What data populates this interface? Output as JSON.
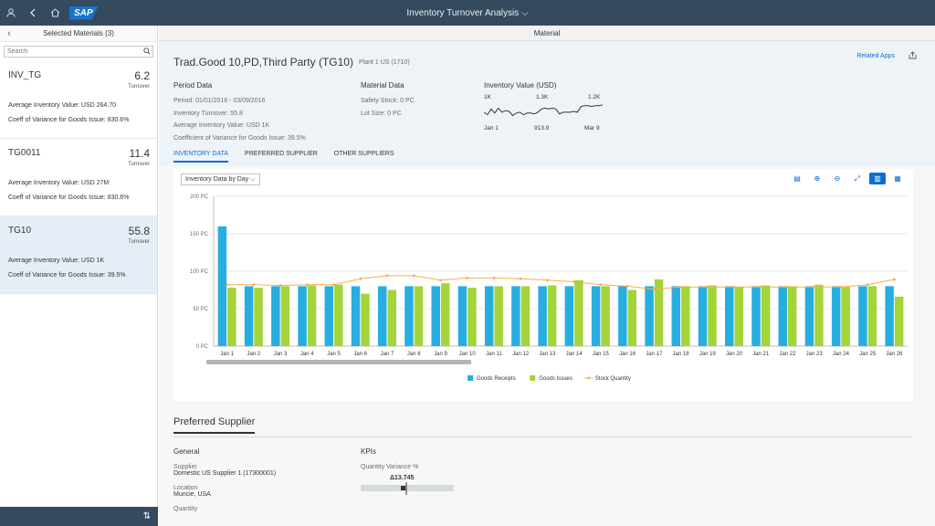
{
  "shell": {
    "title": "Inventory Turnover Analysis",
    "logo": "SAP",
    "icons": [
      "user-icon",
      "back-icon",
      "home-icon",
      "search-icon",
      "help-icon",
      "notifications-icon"
    ]
  },
  "left": {
    "title": "Selected Materials (3)",
    "search_placeholder": "Search",
    "items": [
      {
        "name": "INV_TG",
        "value": "6.2",
        "unit": "Turnover",
        "attr1": "Average Inventory Value: USD 264.70",
        "attr2": "Coeff of Variance for Goods Issue: 830.6%"
      },
      {
        "name": "TG0011",
        "value": "11.4",
        "unit": "Turnover",
        "attr1": "Average Inventory Value: USD 27M",
        "attr2": "Coeff of Variance for Goods Issue: 830.6%"
      },
      {
        "name": "TG10",
        "value": "55.8",
        "unit": "Turnover",
        "attr1": "Average Inventory Value: USD 1K",
        "attr2": "Coeff of Variance for Goods Issue: 39.5%"
      }
    ],
    "footer_icon": "sort-icon"
  },
  "page": {
    "subheader": "Material",
    "title": "Trad.Good 10,PD,Third Party (TG10)",
    "subtitle": "Plant 1 US (1710)",
    "related_apps": "Related Apps",
    "period": {
      "heading": "Period Data",
      "lines": [
        "Period: 01/01/2016 - 03/09/2016",
        "Inventory Turnover: 55.8",
        "Average Inventory Value: USD 1K",
        "Coefficient of Variance for Goods Issue: 39.5%"
      ]
    },
    "material": {
      "heading": "Material Data",
      "lines": [
        "Safety Stock: 0 PC",
        "Lot Size: 0 PC"
      ]
    },
    "inventory_value": {
      "heading": "Inventory Value (USD)",
      "top_labels": [
        "1K",
        "1.3K",
        "1.2K"
      ],
      "bottom_labels": [
        "Jan 1",
        "913.9",
        "Mar 9"
      ],
      "points": [
        0.55,
        0.7,
        0.35,
        0.6,
        0.3,
        0.55,
        0.45,
        0.5,
        0.75,
        0.6,
        0.55,
        0.7,
        0.6,
        0.6,
        0.65,
        0.55,
        0.35,
        0.3,
        0.35,
        0.3,
        0.35,
        0.65,
        0.55,
        0.55,
        0.55,
        0.5,
        0.55,
        0.2,
        0.15,
        0.15,
        0.2,
        0.15,
        0.15,
        0.1
      ]
    },
    "tabs": [
      "INVENTORY DATA",
      "PREFERRED SUPPLIER",
      "OTHER SUPPLIERS"
    ],
    "chart_select": "Inventory Data by Day",
    "preferred": {
      "title": "Preferred Supplier",
      "general_heading": "General",
      "supplier_label": "Supplier",
      "supplier_value": "Domestic US Supplier 1 (17300001)",
      "location_label": "Location",
      "location_value": "Muncie, USA",
      "quantity_label": "Quantity",
      "kpis_heading": "KPIs",
      "qv_label": "Quantity Variance %",
      "qv_value": "Δ13.745"
    }
  },
  "chart_data": {
    "type": "bar",
    "categories": [
      "Jan 1",
      "Jan 2",
      "Jan 3",
      "Jan 4",
      "Jan 5",
      "Jan 6",
      "Jan 7",
      "Jan 8",
      "Jan 9",
      "Jan 10",
      "Jan 11",
      "Jan 12",
      "Jan 13",
      "Jan 14",
      "Jan 15",
      "Jan 16",
      "Jan 17",
      "Jan 18",
      "Jan 19",
      "Jan 20",
      "Jan 21",
      "Jan 22",
      "Jan 23",
      "Jan 24",
      "Jan 25",
      "Jan 26"
    ],
    "series": [
      {
        "name": "Goods Receipts",
        "color": "#27aee0",
        "values": [
          160,
          80,
          80,
          80,
          80,
          80,
          80,
          80,
          80,
          80,
          80,
          80,
          80,
          80,
          80,
          80,
          80,
          80,
          80,
          80,
          80,
          80,
          80,
          80,
          80,
          80
        ]
      },
      {
        "name": "Goods Issues",
        "color": "#a3d43a",
        "values": [
          78,
          78,
          80,
          81,
          82,
          70,
          75,
          80,
          84,
          78,
          80,
          80,
          81,
          88,
          80,
          75,
          89,
          80,
          81,
          79,
          81,
          80,
          82,
          79,
          80,
          66
        ]
      },
      {
        "name": "Stock Quantity",
        "type": "line",
        "color": "#f5b04d",
        "values": [
          82,
          82,
          81,
          82,
          82,
          90,
          94,
          94,
          88,
          91,
          91,
          90,
          88,
          86,
          82,
          80,
          76,
          79,
          79,
          79,
          79,
          79,
          79,
          79,
          82,
          89
        ]
      }
    ],
    "yticks": [
      "0 PC",
      "50 PC",
      "100 PC",
      "150 PC",
      "200 PC"
    ],
    "ylim": [
      0,
      200
    ],
    "legend": "bottom"
  }
}
